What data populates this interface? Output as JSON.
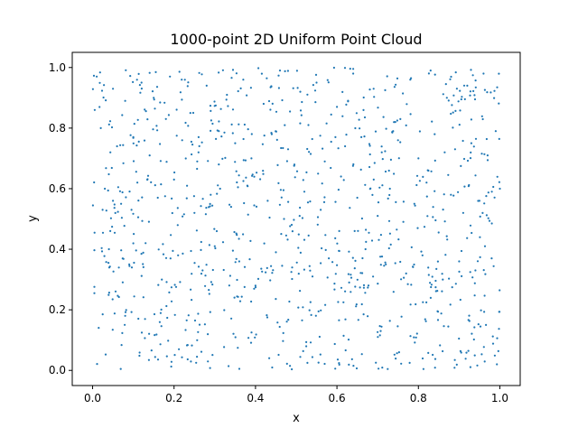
{
  "chart_data": {
    "type": "scatter",
    "title": "1000-point 2D Uniform Point Cloud",
    "xlabel": "x",
    "ylabel": "y",
    "xlim": [
      -0.05,
      1.05
    ],
    "ylim": [
      -0.05,
      1.05
    ],
    "xticks": [
      0.0,
      0.2,
      0.4,
      0.6,
      0.8,
      1.0
    ],
    "xtick_labels": [
      "0.0",
      "0.2",
      "0.4",
      "0.6",
      "0.8",
      "1.0"
    ],
    "yticks": [
      0.0,
      0.2,
      0.4,
      0.6,
      0.8,
      1.0
    ],
    "ytick_labels": [
      "0.0",
      "0.2",
      "0.4",
      "0.6",
      "0.8",
      "1.0"
    ],
    "grid": false,
    "legend": "none",
    "point_count": 1000,
    "point_color": "#1f77b4",
    "series": [
      {
        "x": [
          0.01,
          0.05,
          0.08,
          0.12,
          0.15,
          0.19,
          0.24,
          0.28,
          0.33,
          0.37,
          0.42,
          0.46,
          0.51,
          0.55,
          0.6,
          0.64,
          0.69,
          0.74,
          0.78,
          0.83,
          0.87,
          0.92,
          0.96,
          0.99,
          0.02,
          0.06,
          0.1,
          0.14,
          0.18,
          0.22,
          0.26,
          0.31,
          0.35,
          0.39,
          0.44,
          0.48,
          0.53,
          0.57,
          0.62,
          0.66,
          0.71,
          0.75,
          0.8,
          0.84,
          0.89,
          0.93,
          0.97,
          0.03,
          0.07,
          0.11,
          0.16,
          0.2,
          0.25,
          0.29,
          0.34,
          0.38,
          0.43,
          0.47,
          0.52,
          0.56,
          0.61,
          0.65,
          0.7,
          0.73,
          0.79,
          0.82,
          0.88,
          0.91,
          0.95,
          1.0,
          0.04,
          0.09,
          0.13,
          0.17,
          0.21,
          0.27,
          0.3,
          0.36,
          0.4,
          0.45,
          0.49,
          0.54,
          0.58,
          0.63,
          0.67,
          0.72,
          0.77,
          0.81,
          0.86,
          0.9,
          0.94,
          0.98
        ],
        "y": [
          0.97,
          0.93,
          0.89,
          0.95,
          0.9,
          0.97,
          0.85,
          0.94,
          0.91,
          0.96,
          0.88,
          0.99,
          0.92,
          0.95,
          0.87,
          0.98,
          0.93,
          0.82,
          0.96,
          0.99,
          0.9,
          0.94,
          0.98,
          0.79,
          0.8,
          0.74,
          0.77,
          0.71,
          0.83,
          0.76,
          0.72,
          0.79,
          0.75,
          0.7,
          0.78,
          0.73,
          0.81,
          0.69,
          0.74,
          0.77,
          0.72,
          0.76,
          0.7,
          0.78,
          0.73,
          0.75,
          0.71,
          0.6,
          0.55,
          0.62,
          0.57,
          0.63,
          0.52,
          0.58,
          0.54,
          0.61,
          0.56,
          0.5,
          0.59,
          0.53,
          0.64,
          0.57,
          0.51,
          0.6,
          0.55,
          0.62,
          0.58,
          0.52,
          0.56,
          0.6,
          0.4,
          0.35,
          0.42,
          0.3,
          0.38,
          0.33,
          0.41,
          0.36,
          0.28,
          0.39,
          0.34,
          0.31,
          0.37,
          0.29,
          0.4,
          0.35,
          0.32,
          0.38,
          0.3,
          0.36,
          0.33,
          0.37
        ]
      }
    ]
  }
}
